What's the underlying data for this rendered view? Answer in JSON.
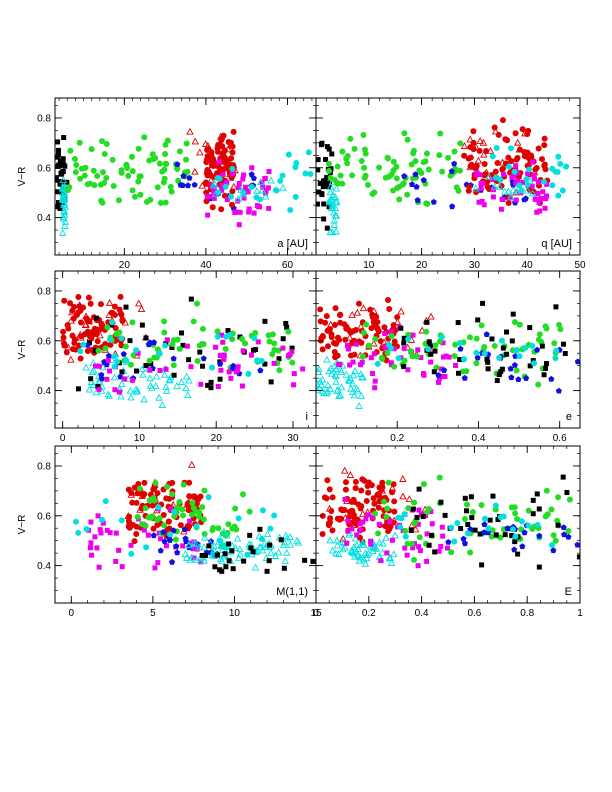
{
  "chart_data": [
    {
      "type": "scatter",
      "panel": "a",
      "xlabel": "a [AU]",
      "ylabel": "V−R",
      "xlim": [
        3,
        67
      ],
      "ylim": [
        0.25,
        0.88
      ],
      "xticks": [
        {
          "v": 20,
          "label": "20"
        },
        {
          "v": 40,
          "label": "40"
        },
        {
          "v": 60,
          "label": "60"
        }
      ],
      "yticks": [
        {
          "v": 0.4,
          "label": "0.4"
        },
        {
          "v": 0.6,
          "label": "0.6"
        },
        {
          "v": 0.8,
          "label": "0.8"
        }
      ],
      "x_minor_step": 2,
      "y_minor_step": 0.05,
      "clusters": [
        {
          "group": "centaur",
          "x": [
            3,
            6
          ],
          "y": [
            0.32,
            0.78
          ],
          "n": 35
        },
        {
          "group": "trojan",
          "x": [
            4.8,
            5.6
          ],
          "y": [
            0.3,
            0.6
          ],
          "n": 28
        },
        {
          "group": "scattered",
          "x": [
            6,
            36
          ],
          "y": [
            0.4,
            0.78
          ],
          "n": 75
        },
        {
          "group": "hot",
          "x": [
            30,
            52
          ],
          "y": [
            0.38,
            0.66
          ],
          "n": 20
        },
        {
          "group": "cold",
          "x": [
            40,
            47
          ],
          "y": [
            0.4,
            0.82
          ],
          "n": 85
        },
        {
          "group": "cold_open",
          "x": [
            36,
            48
          ],
          "y": [
            0.42,
            0.84
          ],
          "n": 20
        },
        {
          "group": "plutino",
          "x": [
            39,
            56
          ],
          "y": [
            0.35,
            0.66
          ],
          "n": 45
        },
        {
          "group": "resonant",
          "x": [
            42,
            66
          ],
          "y": [
            0.4,
            0.72
          ],
          "n": 22
        },
        {
          "group": "resonant_open",
          "x": [
            40,
            60
          ],
          "y": [
            0.42,
            0.62
          ],
          "n": 12
        }
      ]
    },
    {
      "type": "scatter",
      "panel": "q",
      "xlabel": "q [AU]",
      "ylabel": "",
      "xlim": [
        0,
        50
      ],
      "ylim": [
        0.25,
        0.88
      ],
      "xticks": [
        {
          "v": 10,
          "label": "10"
        },
        {
          "v": 20,
          "label": "20"
        },
        {
          "v": 30,
          "label": "30"
        },
        {
          "v": 40,
          "label": "40"
        },
        {
          "v": 50,
          "label": "50"
        }
      ],
      "yticks": [
        {
          "v": 0.4,
          "label": ""
        },
        {
          "v": 0.6,
          "label": ""
        },
        {
          "v": 0.8,
          "label": ""
        }
      ],
      "x_minor_step": 2,
      "y_minor_step": 0.05,
      "clusters": [
        {
          "group": "centaur",
          "x": [
            0,
            3
          ],
          "y": [
            0.3,
            0.78
          ],
          "n": 30
        },
        {
          "group": "trojan",
          "x": [
            2.5,
            4
          ],
          "y": [
            0.3,
            0.6
          ],
          "n": 28
        },
        {
          "group": "scattered",
          "x": [
            2,
            28
          ],
          "y": [
            0.4,
            0.78
          ],
          "n": 75
        },
        {
          "group": "hot",
          "x": [
            15,
            40
          ],
          "y": [
            0.38,
            0.66
          ],
          "n": 20
        },
        {
          "group": "cold",
          "x": [
            28,
            44
          ],
          "y": [
            0.4,
            0.82
          ],
          "n": 85
        },
        {
          "group": "cold_open",
          "x": [
            28,
            42
          ],
          "y": [
            0.42,
            0.84
          ],
          "n": 18
        },
        {
          "group": "plutino",
          "x": [
            30,
            44
          ],
          "y": [
            0.35,
            0.66
          ],
          "n": 45
        },
        {
          "group": "resonant",
          "x": [
            33,
            48
          ],
          "y": [
            0.4,
            0.72
          ],
          "n": 22
        },
        {
          "group": "resonant_open",
          "x": [
            30,
            42
          ],
          "y": [
            0.42,
            0.62
          ],
          "n": 12
        }
      ]
    },
    {
      "type": "scatter",
      "panel": "i",
      "xlabel": "i",
      "ylabel": "V−R",
      "xlim": [
        -1,
        33
      ],
      "ylim": [
        0.25,
        0.88
      ],
      "xticks": [
        {
          "v": 0,
          "label": "0"
        },
        {
          "v": 10,
          "label": "10"
        },
        {
          "v": 20,
          "label": "20"
        },
        {
          "v": 30,
          "label": "30"
        }
      ],
      "yticks": [
        {
          "v": 0.4,
          "label": "0.4"
        },
        {
          "v": 0.6,
          "label": "0.6"
        },
        {
          "v": 0.8,
          "label": "0.8"
        }
      ],
      "x_minor_step": 2,
      "y_minor_step": 0.05,
      "clusters": [
        {
          "group": "cold",
          "x": [
            0,
            8
          ],
          "y": [
            0.45,
            0.84
          ],
          "n": 80
        },
        {
          "group": "cold_open",
          "x": [
            0,
            12
          ],
          "y": [
            0.45,
            0.84
          ],
          "n": 25
        },
        {
          "group": "trojan",
          "x": [
            3,
            17
          ],
          "y": [
            0.3,
            0.56
          ],
          "n": 55
        },
        {
          "group": "centaur",
          "x": [
            2,
            30
          ],
          "y": [
            0.3,
            0.8
          ],
          "n": 45
        },
        {
          "group": "scattered",
          "x": [
            4,
            30
          ],
          "y": [
            0.38,
            0.78
          ],
          "n": 55
        },
        {
          "group": "hot",
          "x": [
            2,
            27
          ],
          "y": [
            0.38,
            0.66
          ],
          "n": 20
        },
        {
          "group": "plutino",
          "x": [
            4,
            32
          ],
          "y": [
            0.35,
            0.66
          ],
          "n": 45
        },
        {
          "group": "resonant",
          "x": [
            2,
            30
          ],
          "y": [
            0.4,
            0.72
          ],
          "n": 20
        }
      ]
    },
    {
      "type": "scatter",
      "panel": "e",
      "xlabel": "e",
      "ylabel": "",
      "xlim": [
        0,
        0.65
      ],
      "ylim": [
        0.25,
        0.88
      ],
      "xticks": [
        {
          "v": 0.2,
          "label": "0.2"
        },
        {
          "v": 0.4,
          "label": "0.4"
        },
        {
          "v": 0.6,
          "label": "0.6"
        }
      ],
      "yticks": [
        {
          "v": 0.4,
          "label": ""
        },
        {
          "v": 0.6,
          "label": ""
        },
        {
          "v": 0.8,
          "label": ""
        }
      ],
      "x_minor_step": 0.05,
      "y_minor_step": 0.05,
      "clusters": [
        {
          "group": "cold",
          "x": [
            0.01,
            0.2
          ],
          "y": [
            0.45,
            0.84
          ],
          "n": 85
        },
        {
          "group": "cold_open",
          "x": [
            0.02,
            0.3
          ],
          "y": [
            0.45,
            0.84
          ],
          "n": 20
        },
        {
          "group": "trojan",
          "x": [
            0.0,
            0.12
          ],
          "y": [
            0.3,
            0.56
          ],
          "n": 50
        },
        {
          "group": "plutino",
          "x": [
            0.05,
            0.35
          ],
          "y": [
            0.35,
            0.7
          ],
          "n": 45
        },
        {
          "group": "scattered",
          "x": [
            0.1,
            0.62
          ],
          "y": [
            0.38,
            0.78
          ],
          "n": 60
        },
        {
          "group": "centaur",
          "x": [
            0.2,
            0.64
          ],
          "y": [
            0.3,
            0.8
          ],
          "n": 40
        },
        {
          "group": "hot",
          "x": [
            0.3,
            0.65
          ],
          "y": [
            0.38,
            0.66
          ],
          "n": 20
        },
        {
          "group": "resonant",
          "x": [
            0.15,
            0.6
          ],
          "y": [
            0.4,
            0.72
          ],
          "n": 20
        }
      ]
    },
    {
      "type": "scatter",
      "panel": "M(1,1)",
      "xlabel": "M(1,1)",
      "ylabel": "V−R",
      "xlim": [
        -1,
        15
      ],
      "ylim": [
        0.25,
        0.88
      ],
      "xticks": [
        {
          "v": 0,
          "label": "0"
        },
        {
          "v": 5,
          "label": "5"
        },
        {
          "v": 10,
          "label": "10"
        },
        {
          "v": 15,
          "label": "15"
        }
      ],
      "yticks": [
        {
          "v": 0.4,
          "label": "0.4"
        },
        {
          "v": 0.6,
          "label": "0.6"
        },
        {
          "v": 0.8,
          "label": "0.8"
        }
      ],
      "x_minor_step": 1,
      "y_minor_step": 0.05,
      "clusters": [
        {
          "group": "cold",
          "x": [
            3.5,
            8
          ],
          "y": [
            0.45,
            0.82
          ],
          "n": 85
        },
        {
          "group": "cold_open",
          "x": [
            3,
            7.5
          ],
          "y": [
            0.45,
            0.84
          ],
          "n": 20
        },
        {
          "group": "plutino",
          "x": [
            1,
            8
          ],
          "y": [
            0.35,
            0.66
          ],
          "n": 40
        },
        {
          "group": "scattered",
          "x": [
            4,
            11
          ],
          "y": [
            0.4,
            0.78
          ],
          "n": 55
        },
        {
          "group": "hot",
          "x": [
            5,
            9
          ],
          "y": [
            0.38,
            0.62
          ],
          "n": 20
        },
        {
          "group": "trojan",
          "x": [
            7,
            14
          ],
          "y": [
            0.38,
            0.56
          ],
          "n": 80
        },
        {
          "group": "resonant",
          "x": [
            0,
            13
          ],
          "y": [
            0.4,
            0.72
          ],
          "n": 20
        },
        {
          "group": "centaur",
          "x": [
            8,
            15
          ],
          "y": [
            0.3,
            0.6
          ],
          "n": 25
        }
      ]
    },
    {
      "type": "scatter",
      "panel": "E",
      "xlabel": "E",
      "ylabel": "",
      "xlim": [
        0,
        1
      ],
      "ylim": [
        0.25,
        0.88
      ],
      "xticks": [
        {
          "v": 0,
          "label": "0"
        },
        {
          "v": 0.2,
          "label": "0.2"
        },
        {
          "v": 0.4,
          "label": "0.4"
        },
        {
          "v": 0.6,
          "label": "0.6"
        },
        {
          "v": 0.8,
          "label": "0.8"
        },
        {
          "v": 1,
          "label": "1"
        }
      ],
      "yticks": [
        {
          "v": 0.4,
          "label": ""
        },
        {
          "v": 0.6,
          "label": ""
        },
        {
          "v": 0.8,
          "label": ""
        }
      ],
      "x_minor_step": 0.05,
      "y_minor_step": 0.05,
      "clusters": [
        {
          "group": "cold",
          "x": [
            0.02,
            0.3
          ],
          "y": [
            0.45,
            0.84
          ],
          "n": 85
        },
        {
          "group": "cold_open",
          "x": [
            0.05,
            0.45
          ],
          "y": [
            0.45,
            0.84
          ],
          "n": 20
        },
        {
          "group": "trojan",
          "x": [
            0.05,
            0.3
          ],
          "y": [
            0.35,
            0.56
          ],
          "n": 55
        },
        {
          "group": "plutino",
          "x": [
            0.1,
            0.5
          ],
          "y": [
            0.35,
            0.7
          ],
          "n": 45
        },
        {
          "group": "scattered",
          "x": [
            0.2,
            0.98
          ],
          "y": [
            0.38,
            0.78
          ],
          "n": 60
        },
        {
          "group": "centaur",
          "x": [
            0.35,
            1
          ],
          "y": [
            0.3,
            0.8
          ],
          "n": 40
        },
        {
          "group": "hot",
          "x": [
            0.5,
            1
          ],
          "y": [
            0.38,
            0.66
          ],
          "n": 20
        },
        {
          "group": "resonant",
          "x": [
            0.3,
            0.9
          ],
          "y": [
            0.4,
            0.72
          ],
          "n": 20
        }
      ]
    }
  ],
  "legend": {},
  "series_styles": {
    "cold": {
      "color": "#e00000",
      "marker": "filled-circle"
    },
    "cold_open": {
      "color": "#e00000",
      "marker": "open-triangle"
    },
    "hot": {
      "color": "#1010e0",
      "marker": "filled-pentagon"
    },
    "scattered": {
      "color": "#22dd22",
      "marker": "filled-circle"
    },
    "plutino": {
      "color": "#ee00ee",
      "marker": "filled-square"
    },
    "resonant": {
      "color": "#00e0e0",
      "marker": "filled-circle"
    },
    "resonant_open": {
      "color": "#00e0e0",
      "marker": "open-triangle"
    },
    "trojan": {
      "color": "#00e0e0",
      "marker": "open-triangle"
    },
    "centaur": {
      "color": "#000000",
      "marker": "filled-square"
    }
  }
}
